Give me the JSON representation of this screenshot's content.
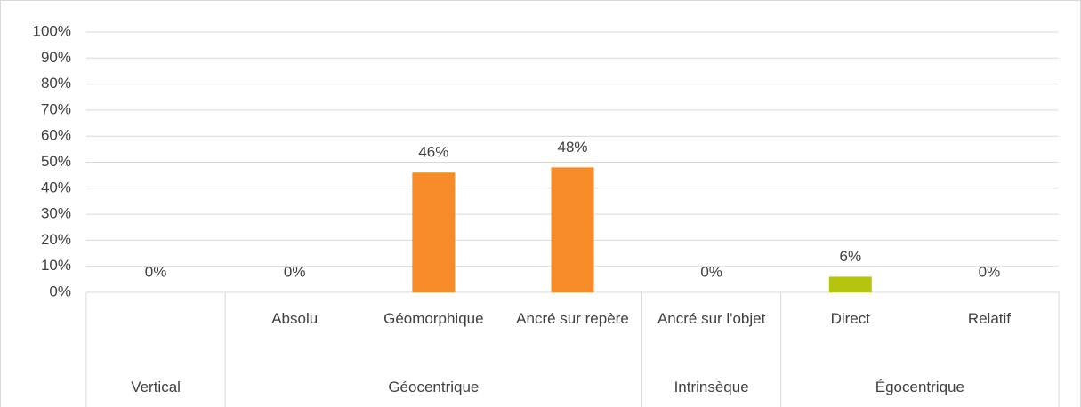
{
  "chart_data": {
    "type": "bar",
    "categories": [
      null,
      "Absolu",
      "Géomorphique",
      "Ancré sur repère",
      "Ancré sur l'objet",
      "Direct",
      "Relatif"
    ],
    "groups": [
      {
        "name": "Vertical",
        "span": 1
      },
      {
        "name": "Géocentrique",
        "span": 3
      },
      {
        "name": "Intrinsèque",
        "span": 1
      },
      {
        "name": "Égocentrique",
        "span": 2
      }
    ],
    "values": [
      0,
      0,
      46,
      48,
      0,
      6,
      0
    ],
    "value_labels": [
      "0%",
      "0%",
      "46%",
      "48%",
      "0%",
      "6%",
      "0%"
    ],
    "colors": [
      null,
      "#f68b28",
      "#f68b28",
      "#f68b28",
      null,
      "#b5c40c",
      "#b5c40c"
    ],
    "ylim": [
      0,
      100
    ],
    "yticks": [
      {
        "value": 0,
        "label": "0%"
      },
      {
        "value": 10,
        "label": "10%"
      },
      {
        "value": 20,
        "label": "20%"
      },
      {
        "value": 30,
        "label": "30%"
      },
      {
        "value": 40,
        "label": "40%"
      },
      {
        "value": 50,
        "label": "50%"
      },
      {
        "value": 60,
        "label": "60%"
      },
      {
        "value": 70,
        "label": "70%"
      },
      {
        "value": 80,
        "label": "80%"
      },
      {
        "value": 90,
        "label": "90%"
      },
      {
        "value": 100,
        "label": "100%"
      }
    ],
    "grid": true
  }
}
